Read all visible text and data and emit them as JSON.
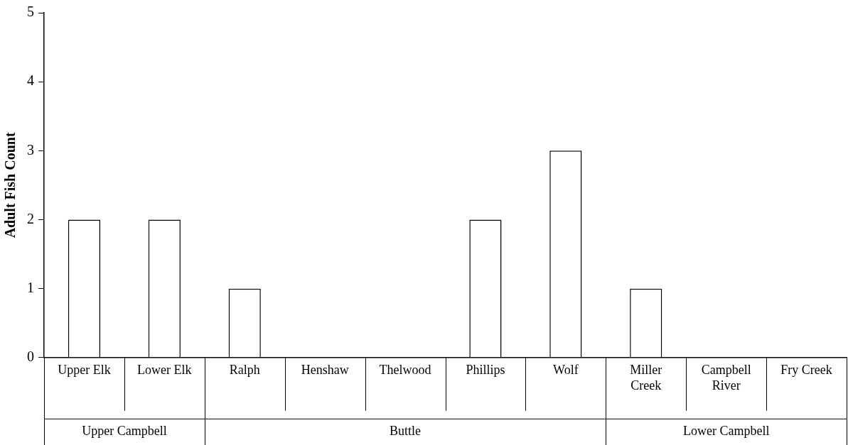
{
  "chart_data": {
    "type": "bar",
    "ylabel": "Adult Fish Count",
    "categories": [
      "Upper Elk",
      "Lower Elk",
      "Ralph",
      "Henshaw",
      "Thelwood",
      "Phillips",
      "Wolf",
      "Miller Creek",
      "Campbell River",
      "Fry Creek"
    ],
    "values": [
      2,
      2,
      1,
      0,
      0,
      2,
      3,
      1,
      0,
      0
    ],
    "color": "#ffffff",
    "ylim": [
      0,
      5
    ],
    "yticks": [
      0,
      1,
      2,
      3,
      4,
      5
    ],
    "grid": false,
    "legend": false,
    "annotations": [
      "Upper Campbell",
      "Buttle",
      "Lower Campbell"
    ]
  }
}
